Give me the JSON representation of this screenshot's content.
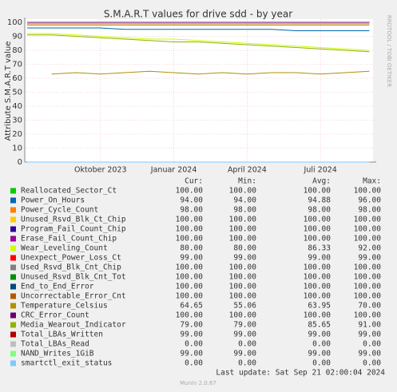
{
  "chart_data": {
    "type": "line",
    "title": "S.M.A.R.T values for drive sdd - by year",
    "y_label": "Attribute S.M.A.R.T value",
    "side_note": "RRDTOOL / TOBI OETIKER",
    "categories": [
      null,
      null,
      null,
      "Oktober 2023",
      null,
      null,
      "Januar 2024",
      null,
      null,
      "April 2024",
      null,
      null,
      "Juli 2024",
      null,
      null
    ],
    "ylim": [
      0,
      100
    ],
    "yticks": [
      0,
      10,
      20,
      30,
      40,
      50,
      60,
      70,
      80,
      90,
      100
    ],
    "grid": true,
    "stats_columns": [
      "Cur:",
      "Min:",
      "Avg:",
      "Max:"
    ],
    "series": [
      {
        "name": "Reallocated_Sector_Ct",
        "color": "#00cc00",
        "values": [
          100,
          100,
          100,
          100,
          100,
          100,
          100,
          100,
          100,
          100,
          100,
          100,
          100,
          100,
          100
        ],
        "stats": [
          "100.00",
          "100.00",
          "100.00",
          "100.00"
        ]
      },
      {
        "name": "Power_On_Hours",
        "color": "#0066b3",
        "values": [
          96,
          96,
          96,
          96,
          95,
          95,
          95,
          95,
          95,
          95,
          95,
          94,
          94,
          94,
          94
        ],
        "stats": [
          "94.00",
          "94.00",
          "94.88",
          "96.00"
        ]
      },
      {
        "name": "Power_Cycle_Count",
        "color": "#ff8000",
        "values": [
          98,
          98,
          98,
          98,
          98,
          98,
          98,
          98,
          98,
          98,
          98,
          98,
          98,
          98,
          98
        ],
        "stats": [
          "98.00",
          "98.00",
          "98.00",
          "98.00"
        ]
      },
      {
        "name": "Unused_Rsvd_Blk_Ct_Chip",
        "color": "#ffcc00",
        "values": [
          100,
          100,
          100,
          100,
          100,
          100,
          100,
          100,
          100,
          100,
          100,
          100,
          100,
          100,
          100
        ],
        "stats": [
          "100.00",
          "100.00",
          "100.00",
          "100.00"
        ]
      },
      {
        "name": "Program_Fail_Count_Chip",
        "color": "#330099",
        "values": [
          100,
          100,
          100,
          100,
          100,
          100,
          100,
          100,
          100,
          100,
          100,
          100,
          100,
          100,
          100
        ],
        "stats": [
          "100.00",
          "100.00",
          "100.00",
          "100.00"
        ]
      },
      {
        "name": "Erase_Fail_Count_Chip",
        "color": "#990099",
        "values": [
          100,
          100,
          100,
          100,
          100,
          100,
          100,
          100,
          100,
          100,
          100,
          100,
          100,
          100,
          100
        ],
        "stats": [
          "100.00",
          "100.00",
          "100.00",
          "100.00"
        ]
      },
      {
        "name": "Wear_Leveling_Count",
        "color": "#ccff00",
        "values": [
          92,
          92,
          91,
          90,
          89,
          88,
          88,
          87,
          86,
          85,
          84,
          83,
          82,
          81,
          80
        ],
        "stats": [
          "80.00",
          "80.00",
          "86.33",
          "92.00"
        ]
      },
      {
        "name": "Unexpect_Power_Loss_Ct",
        "color": "#ff0000",
        "values": [
          99,
          99,
          99,
          99,
          99,
          99,
          99,
          99,
          99,
          99,
          99,
          99,
          99,
          99,
          99
        ],
        "stats": [
          "99.00",
          "99.00",
          "99.00",
          "99.00"
        ]
      },
      {
        "name": "Used_Rsvd_Blk_Cnt_Chip",
        "color": "#808080",
        "values": [
          100,
          100,
          100,
          100,
          100,
          100,
          100,
          100,
          100,
          100,
          100,
          100,
          100,
          100,
          100
        ],
        "stats": [
          "100.00",
          "100.00",
          "100.00",
          "100.00"
        ]
      },
      {
        "name": "Unused_Rsvd_Blk_Cnt_Tot",
        "color": "#008f00",
        "values": [
          100,
          100,
          100,
          100,
          100,
          100,
          100,
          100,
          100,
          100,
          100,
          100,
          100,
          100,
          100
        ],
        "stats": [
          "100.00",
          "100.00",
          "100.00",
          "100.00"
        ]
      },
      {
        "name": "End_to_End_Error",
        "color": "#00487d",
        "values": [
          100,
          100,
          100,
          100,
          100,
          100,
          100,
          100,
          100,
          100,
          100,
          100,
          100,
          100,
          100
        ],
        "stats": [
          "100.00",
          "100.00",
          "100.00",
          "100.00"
        ]
      },
      {
        "name": "Uncorrectable_Error_Cnt",
        "color": "#b35a00",
        "values": [
          100,
          100,
          100,
          100,
          100,
          100,
          100,
          100,
          100,
          100,
          100,
          100,
          100,
          100,
          100
        ],
        "stats": [
          "100.00",
          "100.00",
          "100.00",
          "100.00"
        ]
      },
      {
        "name": "Temperature_Celsius",
        "color": "#b38f00",
        "values": [
          null,
          63,
          64,
          63,
          64,
          65,
          64,
          63,
          64,
          63,
          64,
          64,
          63,
          64,
          65
        ],
        "stats": [
          "64.65",
          "55.06",
          "63.95",
          "70.00"
        ]
      },
      {
        "name": "CRC_Error_Count",
        "color": "#6b006b",
        "values": [
          100,
          100,
          100,
          100,
          100,
          100,
          100,
          100,
          100,
          100,
          100,
          100,
          100,
          100,
          100
        ],
        "stats": [
          "100.00",
          "100.00",
          "100.00",
          "100.00"
        ]
      },
      {
        "name": "Media_Wearout_Indicator",
        "color": "#8fb300",
        "values": [
          91,
          91,
          90,
          89,
          88,
          87,
          86,
          86,
          85,
          84,
          83,
          82,
          81,
          80,
          79
        ],
        "stats": [
          "79.00",
          "79.00",
          "85.65",
          "91.00"
        ]
      },
      {
        "name": "Total_LBAs_Written",
        "color": "#b30000",
        "values": [
          99,
          99,
          99,
          99,
          99,
          99,
          99,
          99,
          99,
          99,
          99,
          99,
          99,
          99,
          99
        ],
        "stats": [
          "99.00",
          "99.00",
          "99.00",
          "99.00"
        ]
      },
      {
        "name": "Total_LBAs_Read",
        "color": "#bebebe",
        "values": [
          0,
          0,
          0,
          0,
          0,
          0,
          0,
          0,
          0,
          0,
          0,
          0,
          0,
          0,
          0
        ],
        "stats": [
          "0.00",
          "0.00",
          "0.00",
          "0.00"
        ]
      },
      {
        "name": "NAND_Writes_1GiB",
        "color": "#80ff80",
        "values": [
          99,
          99,
          99,
          99,
          99,
          99,
          99,
          99,
          99,
          99,
          99,
          99,
          99,
          99,
          99
        ],
        "stats": [
          "99.00",
          "99.00",
          "99.00",
          "99.00"
        ]
      },
      {
        "name": "smartctl_exit_status",
        "color": "#80c9ff",
        "values": [
          0,
          0,
          0,
          0,
          0,
          0,
          0,
          0,
          0,
          0,
          0,
          0,
          0,
          0,
          0
        ],
        "stats": [
          "0.00",
          "0.00",
          "0.00",
          "0.00"
        ]
      }
    ],
    "last_update": "Last update: Sat Sep 21 02:00:04 2024",
    "footer": "Munin 2.0.67"
  }
}
